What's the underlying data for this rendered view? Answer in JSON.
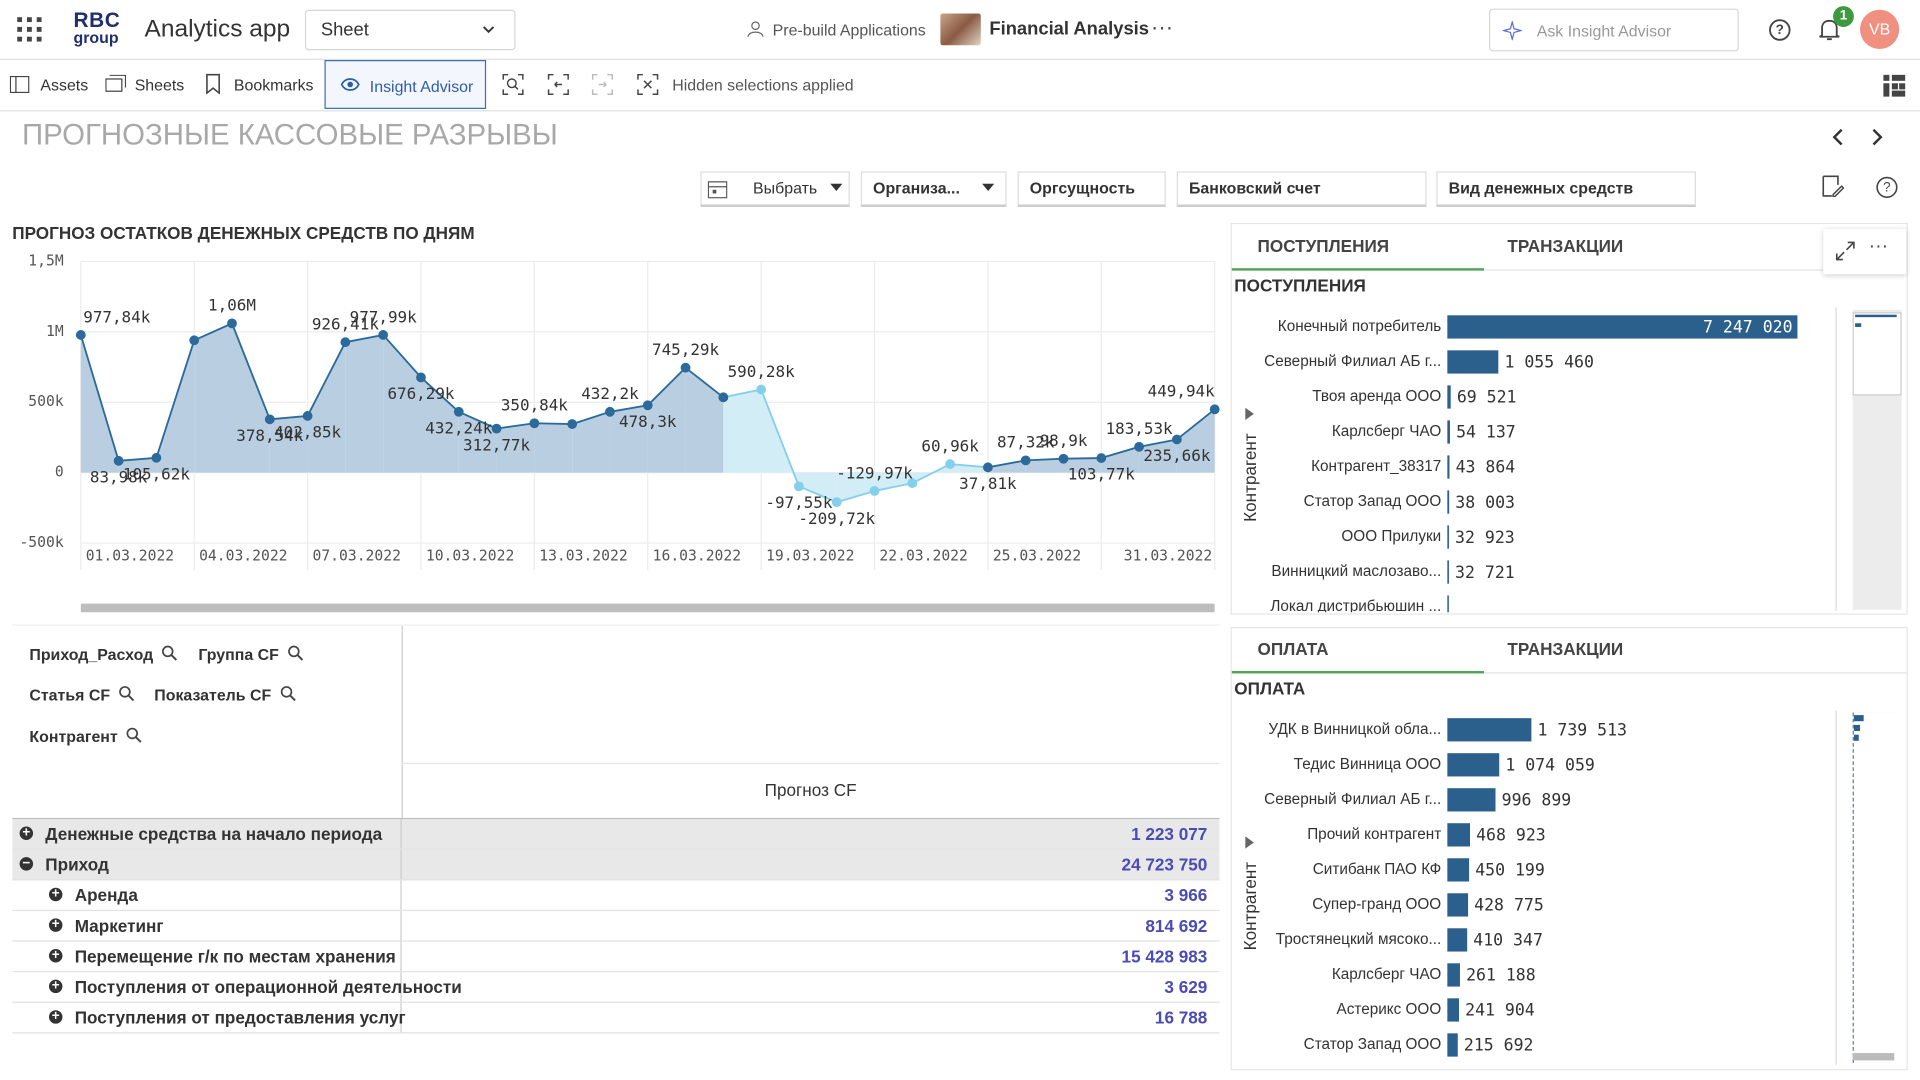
{
  "header": {
    "logo_top": "RBC",
    "logo_bottom": "group",
    "app_name": "Analytics app",
    "sheet_select": "Sheet",
    "prebuild": "Pre-build Applications",
    "app_title": "Financial Analysis",
    "search_placeholder": "Ask Insight Advisor",
    "notification_count": "1",
    "avatar": "VB"
  },
  "toolbar": {
    "assets": "Assets",
    "sheets": "Sheets",
    "bookmarks": "Bookmarks",
    "insight": "Insight Advisor",
    "hidden": "Hidden selections applied"
  },
  "sheet_title": "ПРОГНОЗНЫЕ КАССОВЫЕ РАЗРЫВЫ",
  "filters": [
    "Выбрать",
    "Организа...",
    "Оргсущность",
    "Банковский счет",
    "Вид денежных средств"
  ],
  "line_chart": {
    "type": "line",
    "title": "ПРОГНОЗ ОСТАТКОВ ДЕНЕЖНЫХ СРЕДСТВ ПО ДНЯМ",
    "categories": [
      "01.03.2022",
      null,
      null,
      "04.03.2022",
      null,
      null,
      "07.03.2022",
      null,
      null,
      "10.03.2022",
      null,
      null,
      "13.03.2022",
      null,
      null,
      "16.03.2022",
      null,
      null,
      "19.03.2022",
      null,
      null,
      "22.03.2022",
      null,
      null,
      "25.03.2022",
      null,
      null,
      null,
      null,
      null,
      "31.03.2022"
    ],
    "values": [
      977840,
      83980,
      105620,
      940000,
      1060000,
      378540,
      402850,
      926410,
      977990,
      676290,
      432240,
      312770,
      350840,
      345000,
      432200,
      478300,
      745290,
      535000,
      590280,
      -97550,
      -209720,
      -129970,
      -75000,
      60960,
      37810,
      87320,
      98900,
      103770,
      183530,
      235660,
      449940
    ],
    "value_labels": [
      "977,84k",
      "83,98k",
      "105,62k",
      null,
      "1,06M",
      "378,54k",
      "402,85k",
      "926,41k",
      "977,99k",
      "676,29k",
      "432,24k",
      "312,77k",
      "350,84k",
      null,
      "432,2k",
      "478,3k",
      "745,29k",
      null,
      "590,28k",
      "-97,55k",
      "-209,72k",
      "-129,97k",
      null,
      "60,96k",
      "37,81k",
      "87,32k",
      "98,9k",
      "103,77k",
      "183,53k",
      "235,66k",
      "449,94k"
    ],
    "point_colors": [
      "#2b6a9a",
      "#2b6a9a",
      "#2b6a9a",
      "#2b6a9a",
      "#2b6a9a",
      "#2b6a9a",
      "#2b6a9a",
      "#2b6a9a",
      "#2b6a9a",
      "#2b6a9a",
      "#2b6a9a",
      "#2b6a9a",
      "#2b6a9a",
      "#2b6a9a",
      "#2b6a9a",
      "#2b6a9a",
      "#2b6a9a",
      "#2b6a9a",
      "#84d0ec",
      "#84d0ec",
      "#84d0ec",
      "#84d0ec",
      "#84d0ec",
      "#84d0ec",
      "#2b6a9a",
      "#2b6a9a",
      "#2b6a9a",
      "#2b6a9a",
      "#2b6a9a",
      "#2b6a9a",
      "#2b6a9a"
    ],
    "ylim": [
      -500000,
      1500000
    ],
    "yticks": [
      {
        "value": -500000,
        "label": "-500k"
      },
      0,
      {
        "value": 500000,
        "label": "500k"
      },
      {
        "value": 1000000,
        "label": "1M"
      },
      {
        "value": 1500000,
        "label": "1,5M"
      }
    ],
    "grid": true
  },
  "income_chart": {
    "type": "bar",
    "orientation": "horizontal",
    "tabs": [
      "ПОСТУПЛЕНИЯ",
      "ТРАНЗАКЦИИ"
    ],
    "title": "ПОСТУПЛЕНИЯ",
    "y_label": "Контрагент",
    "categories": [
      "Конечный потребитель",
      "Северный Филиал АБ г...",
      "Твоя аренда ООО",
      "Карлсберг ЧАО",
      "Контрагент_38317",
      "Статор Запад ООО",
      "ООО Прилуки",
      "Винницкий маслозаво...",
      "Локал дистрибьюшин ..."
    ],
    "values": [
      7247020,
      1055460,
      69521,
      54137,
      43864,
      38003,
      32923,
      32721,
      31000
    ],
    "value_labels": [
      "7 247 020",
      "1 055 460",
      "69 521",
      "54 137",
      "43 864",
      "38 003",
      "32 923",
      "32 721",
      null
    ],
    "color": "#2b5f8c",
    "xlim": [
      0,
      7300000
    ]
  },
  "payment_chart": {
    "type": "bar",
    "orientation": "horizontal",
    "tabs": [
      "ОПЛАТА",
      "ТРАНЗАКЦИИ"
    ],
    "title": "ОПЛАТА",
    "y_label": "Контрагент",
    "categories": [
      "УДК в Винницкой обла...",
      "Тедис Винница ООО",
      "Северный Филиал АБ г...",
      "Прочий контрагент",
      "Ситибанк ПАО КФ",
      "Супер-гранд ООО",
      "Тростянецкий мясоко...",
      "Карлсберг ЧАО",
      "Астерикс ООО",
      "Статор Запад ООО"
    ],
    "values": [
      1739513,
      1074059,
      996899,
      468923,
      450199,
      428775,
      410347,
      261188,
      241904,
      215692
    ],
    "value_labels": [
      "1 739 513",
      "1 074 059",
      "996 899",
      "468 923",
      "450 199",
      "428 775",
      "410 347",
      "261 188",
      "241 904",
      "215 692"
    ],
    "color": "#2b5f8c",
    "xlim": [
      0,
      7300000
    ]
  },
  "table": {
    "dimensions": [
      "Приход_Расход",
      "Группа CF",
      "Статья CF",
      "Показатель CF",
      "Контрагент"
    ],
    "measure": "Прогноз CF",
    "rows": [
      [
        "Денежные средства на начало периода",
        "1 223 077"
      ],
      [
        "Приход",
        "24 723 750"
      ],
      [
        "Аренда",
        "3 966"
      ],
      [
        "Маркетинг",
        "814 692"
      ],
      [
        "Перемещение г/к по местам хранения",
        "15 428 983"
      ],
      [
        "Поступления от операционной деятельности",
        "3 629"
      ],
      [
        "Поступления от предоставления услуг",
        "16 788"
      ]
    ],
    "row_levels": [
      0,
      0,
      1,
      1,
      1,
      1,
      1
    ],
    "row_expanded": [
      false,
      true,
      false,
      false,
      false,
      false,
      false
    ]
  }
}
